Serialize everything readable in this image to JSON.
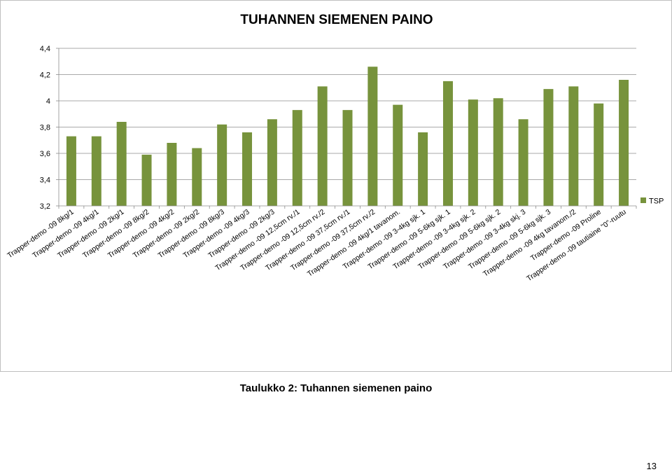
{
  "chart_data": {
    "type": "bar",
    "title": "TUHANNEN SIEMENEN PAINO",
    "xlabel": "",
    "ylabel": "",
    "ylim": [
      3.2,
      4.4
    ],
    "yticks": [
      "3,2",
      "3,4",
      "3,6",
      "3,8",
      "4",
      "4,2",
      "4,4"
    ],
    "grid": true,
    "legend_position": "right",
    "categories": [
      "Trapper-demo -09 8kg/1",
      "Trapper-demo -09 4kg/1",
      "Trapper-demo -09 2kg/1",
      "Trapper-demo -09 8kg/2",
      "Trapper-demo -09 4kg/2",
      "Trapper-demo -09 2kg/2",
      "Trapper-demo -09 8kg/3",
      "Trapper-demo -09 4kg/3",
      "Trapper-demo -09 2kg/3",
      "Trapper-demo -09 12,5cm rv./1",
      "Trapper-demo -09 12,5cm rv./2",
      "Trapper-demo -09 37,5cm rv./1",
      "Trapper-demo -09 37,5cm rv./2",
      "Trapper-demo -09 4kg/1 tavanom.",
      "Trapper-demo -09 3-4kg sjk. 1",
      "Trapper-demo -09 5-6kg sjk. 1",
      "Trapper-demo -09 3-4kg sjk. 2",
      "Trapper-demo -09 5-6kg sjk. 2",
      "Trapper-demo -09 3-4kg skj. 3",
      "Trapper-demo -09 5-6kg sjk. 3",
      "Trapper-demo -09 4kg tavanom./2",
      "Trapper-demo -09 Proline",
      "Trapper-demo -09 tautiaine \"0\"-ruutu"
    ],
    "series": [
      {
        "name": "TSP",
        "color": "#77933c",
        "values": [
          3.73,
          3.73,
          3.84,
          3.59,
          3.68,
          3.64,
          3.82,
          3.76,
          3.86,
          3.93,
          4.11,
          3.93,
          4.26,
          3.97,
          3.76,
          4.15,
          4.01,
          4.02,
          3.86,
          4.09,
          4.11,
          3.98,
          4.16
        ]
      }
    ]
  },
  "caption": "Taulukko 2: Tuhannen siemenen paino",
  "page_number": "13"
}
